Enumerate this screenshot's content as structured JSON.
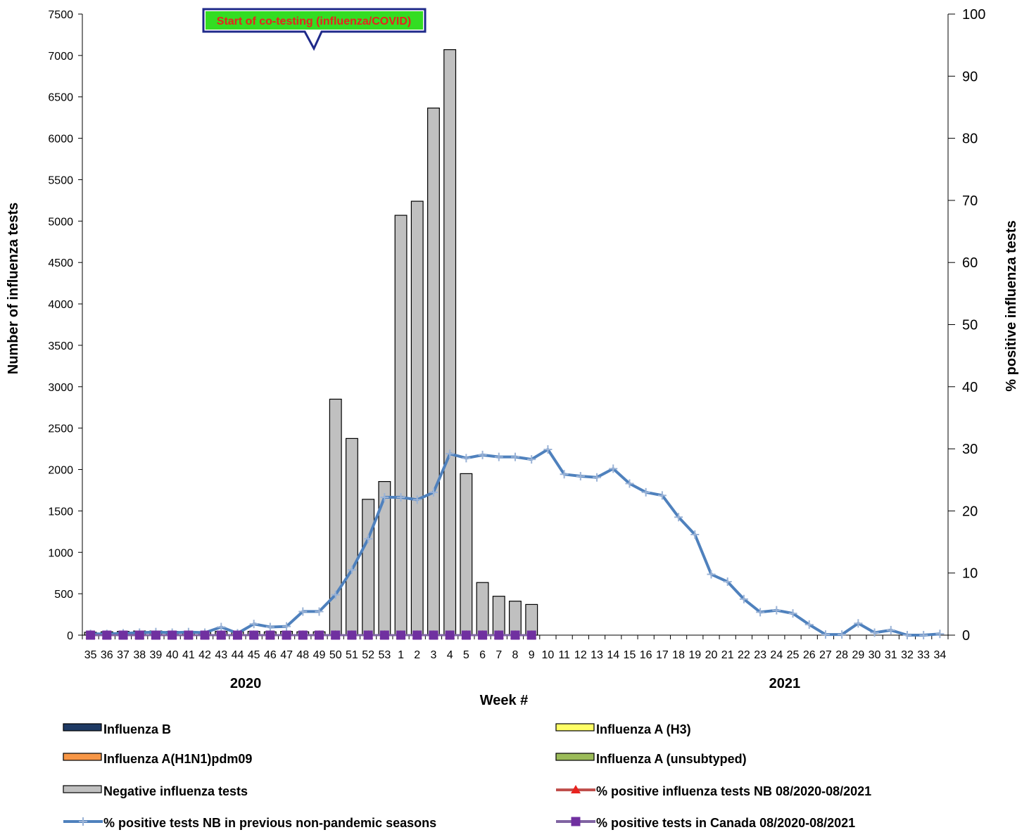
{
  "chart_data": {
    "type": "bar",
    "xlabel": "Week #",
    "ylabel_left": "Number of influenza tests",
    "ylabel_right": "% positive influenza tests",
    "ylim_left": [
      0,
      7500
    ],
    "ylim_right": [
      0,
      100
    ],
    "left_ticks": [
      0,
      500,
      1000,
      1500,
      2000,
      2500,
      3000,
      3500,
      4000,
      4500,
      5000,
      5500,
      6000,
      6500,
      7000,
      7500
    ],
    "right_ticks": [
      0,
      10,
      20,
      30,
      40,
      50,
      60,
      70,
      80,
      90,
      100
    ],
    "categories": [
      "35",
      "36",
      "37",
      "38",
      "39",
      "40",
      "41",
      "42",
      "43",
      "44",
      "45",
      "46",
      "47",
      "48",
      "49",
      "50",
      "51",
      "52",
      "53",
      "1",
      "2",
      "3",
      "4",
      "5",
      "6",
      "7",
      "8",
      "9",
      "10",
      "11",
      "12",
      "13",
      "14",
      "15",
      "16",
      "17",
      "18",
      "19",
      "20",
      "21",
      "22",
      "23",
      "24",
      "25",
      "26",
      "27",
      "28",
      "29",
      "30",
      "31",
      "32",
      "33",
      "34"
    ],
    "year_labels": [
      {
        "label": "2020",
        "at_week": "44"
      },
      {
        "label": "2021",
        "at_week": "24"
      }
    ],
    "grid": false,
    "legend_position": "bottom",
    "annotation": {
      "text": "Start of co-testing (influenza/COVID)",
      "points_to_week": "49"
    },
    "series": [
      {
        "name": "Influenza B",
        "kind": "bar",
        "axis": "left",
        "color": "#1f3a64",
        "values": [
          0,
          0,
          0,
          0,
          0,
          0,
          0,
          0,
          0,
          0,
          0,
          0,
          0,
          0,
          0,
          0,
          0,
          0,
          0,
          0,
          0,
          0,
          0,
          0,
          0,
          0,
          0,
          0,
          0,
          0,
          0,
          0,
          0,
          0,
          0,
          0,
          0,
          0,
          0,
          0,
          0,
          0,
          0,
          0,
          0,
          0,
          0,
          0,
          0,
          0,
          0,
          0,
          0
        ]
      },
      {
        "name": "Influenza A (H3)",
        "kind": "bar",
        "axis": "left",
        "color": "#ffff66",
        "values": [
          0,
          0,
          0,
          0,
          0,
          0,
          0,
          0,
          0,
          0,
          0,
          0,
          0,
          0,
          0,
          0,
          0,
          0,
          0,
          0,
          0,
          0,
          0,
          0,
          0,
          0,
          0,
          0,
          0,
          0,
          0,
          0,
          0,
          0,
          0,
          0,
          0,
          0,
          0,
          0,
          0,
          0,
          0,
          0,
          0,
          0,
          0,
          0,
          0,
          0,
          0,
          0,
          0
        ]
      },
      {
        "name": "Influenza A(H1N1)pdm09",
        "kind": "bar",
        "axis": "left",
        "color": "#f79646",
        "values": [
          0,
          0,
          0,
          0,
          0,
          0,
          0,
          0,
          0,
          0,
          0,
          0,
          0,
          0,
          0,
          0,
          0,
          0,
          0,
          0,
          0,
          0,
          0,
          0,
          0,
          0,
          0,
          0,
          0,
          0,
          0,
          0,
          0,
          0,
          0,
          0,
          0,
          0,
          0,
          0,
          0,
          0,
          0,
          0,
          0,
          0,
          0,
          0,
          0,
          0,
          0,
          0,
          0
        ]
      },
      {
        "name": "Influenza A (unsubtyped)",
        "kind": "bar",
        "axis": "left",
        "color": "#9bbb59",
        "values": [
          0,
          0,
          0,
          0,
          0,
          0,
          0,
          0,
          0,
          0,
          0,
          0,
          0,
          0,
          0,
          0,
          0,
          0,
          0,
          0,
          0,
          0,
          0,
          0,
          0,
          0,
          0,
          0,
          0,
          0,
          0,
          0,
          0,
          0,
          0,
          0,
          0,
          0,
          0,
          0,
          0,
          0,
          0,
          0,
          0,
          0,
          0,
          0,
          0,
          0,
          0,
          0,
          0
        ]
      },
      {
        "name": "Negative influenza tests",
        "kind": "bar",
        "axis": "left",
        "color": "#c0c0c0",
        "values": [
          35,
          40,
          45,
          50,
          50,
          45,
          40,
          40,
          45,
          40,
          45,
          40,
          45,
          40,
          40,
          2850,
          2375,
          1640,
          1855,
          5070,
          5240,
          6365,
          7070,
          1950,
          635,
          470,
          410,
          370,
          null,
          null,
          null,
          null,
          null,
          null,
          null,
          null,
          null,
          null,
          null,
          null,
          null,
          null,
          null,
          null,
          null,
          null,
          null,
          null,
          null,
          null,
          null,
          null,
          null
        ]
      },
      {
        "name": "% positive influenza tests NB 08/2020-08/2021",
        "kind": "line",
        "axis": "right",
        "color": "#c0504d",
        "marker": "triangle",
        "values": [
          0,
          0,
          0,
          0,
          0,
          0,
          0,
          0,
          0,
          0,
          0,
          0,
          0,
          0,
          0,
          0,
          0,
          0,
          0,
          0,
          0,
          0,
          0,
          0,
          0,
          0,
          0,
          0,
          null,
          null,
          null,
          null,
          null,
          null,
          null,
          null,
          null,
          null,
          null,
          null,
          null,
          null,
          null,
          null,
          null,
          null,
          null,
          null,
          null,
          null,
          null,
          null,
          null
        ]
      },
      {
        "name": "% positive tests NB in previous non-pandemic seasons",
        "kind": "line",
        "axis": "right",
        "color": "#4f81bd",
        "marker": "plus",
        "values": [
          0.2,
          0.2,
          0.3,
          0.4,
          0.5,
          0.4,
          0.5,
          0.4,
          1.3,
          0.3,
          1.8,
          1.3,
          1.4,
          3.8,
          3.8,
          6.5,
          10.5,
          15.5,
          22.2,
          22.2,
          21.8,
          23.0,
          29.2,
          28.5,
          29.0,
          28.7,
          28.7,
          28.3,
          29.9,
          25.9,
          25.6,
          25.4,
          26.8,
          24.4,
          23.0,
          22.5,
          19.0,
          16.2,
          9.8,
          8.6,
          5.8,
          3.7,
          4.0,
          3.5,
          1.7,
          0.1,
          0.1,
          1.9,
          0.4,
          0.8,
          0.0,
          0.0,
          0.2
        ]
      },
      {
        "name": "% positive tests  in Canada 08/2020-08/2021",
        "kind": "line",
        "axis": "right",
        "color": "#8064a2",
        "marker": "square",
        "values": [
          0,
          0,
          0,
          0,
          0,
          0,
          0,
          0,
          0,
          0,
          0,
          0,
          0,
          0,
          0,
          0,
          0,
          0,
          0,
          0,
          0,
          0,
          0,
          0,
          0,
          0,
          0,
          0,
          null,
          null,
          null,
          null,
          null,
          null,
          null,
          null,
          null,
          null,
          null,
          null,
          null,
          null,
          null,
          null,
          null,
          null,
          null,
          null,
          null,
          null,
          null,
          null,
          null
        ]
      }
    ]
  }
}
